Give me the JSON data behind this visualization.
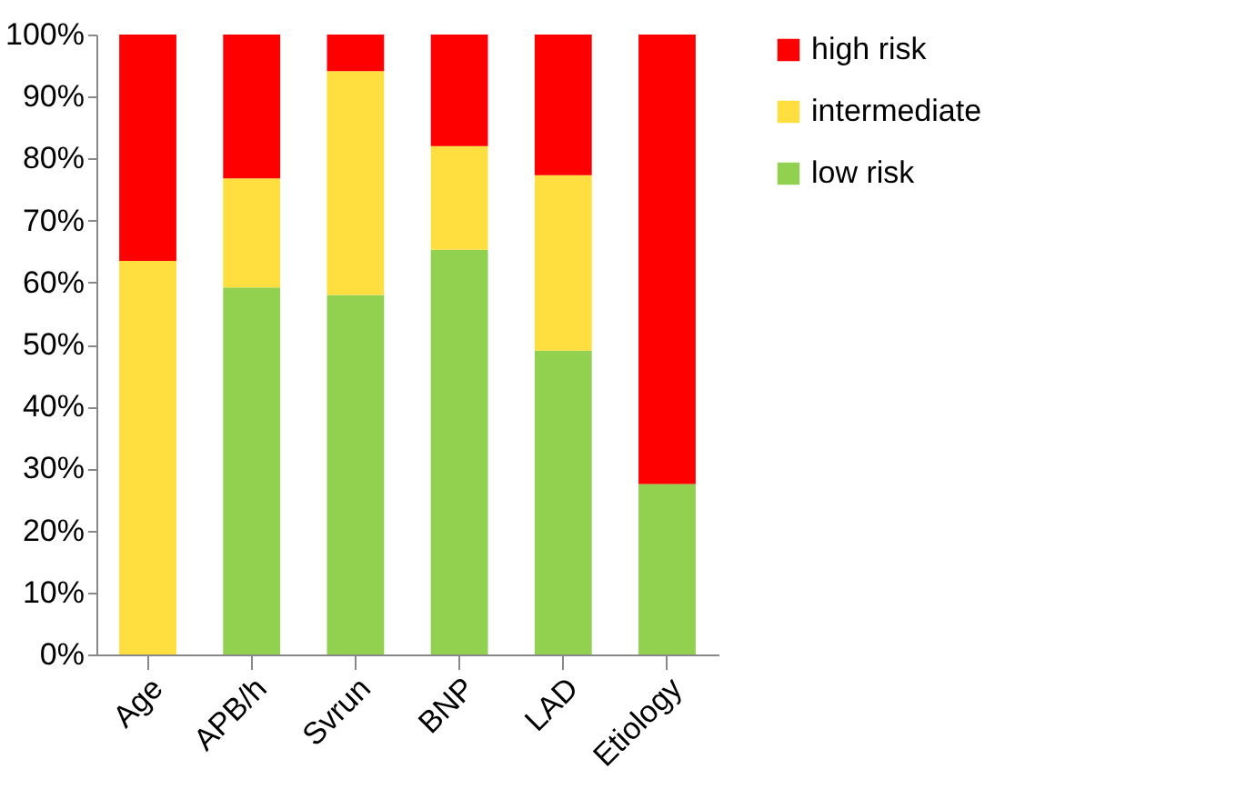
{
  "chart_data": {
    "type": "bar",
    "stacked": true,
    "categories": [
      "Age",
      "APB/h",
      "Svrun",
      "BNP",
      "LAD",
      "Etiology"
    ],
    "series": [
      {
        "name": "low risk",
        "color": "#92d050",
        "values": [
          0,
          59.2,
          58,
          65.3,
          49,
          27.5
        ]
      },
      {
        "name": "intermediate",
        "color": "#ffdf3f",
        "values": [
          63.5,
          17.6,
          36.1,
          16.7,
          28.3,
          0
        ]
      },
      {
        "name": "high risk",
        "color": "#ff0000",
        "values": [
          36.5,
          23.2,
          5.9,
          18,
          22.7,
          72.5
        ]
      }
    ],
    "ylim": [
      0,
      100
    ],
    "yticks": [
      {
        "value": 0,
        "label": "0%"
      },
      {
        "value": 10,
        "label": "10%"
      },
      {
        "value": 20,
        "label": "20%"
      },
      {
        "value": 30,
        "label": "30%"
      },
      {
        "value": 40,
        "label": "40%"
      },
      {
        "value": 50,
        "label": "50%"
      },
      {
        "value": 60,
        "label": "60%"
      },
      {
        "value": 70,
        "label": "70%"
      },
      {
        "value": 80,
        "label": "80%"
      },
      {
        "value": 90,
        "label": "90%"
      },
      {
        "value": 100,
        "label": "100%"
      }
    ],
    "grid": false,
    "legend": "right"
  }
}
